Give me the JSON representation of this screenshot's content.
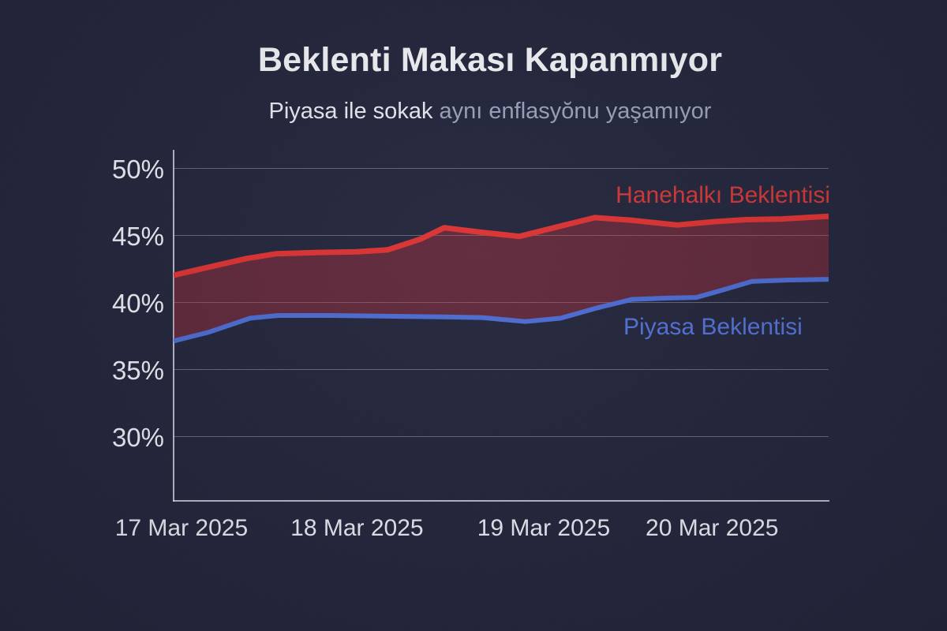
{
  "header": {
    "title": "Beklenti Makası Kapanmıyor",
    "subtitle_strong": "Piyasa ile sokak",
    "subtitle_muted": " aynı enflasyŏnu yaşamıyor"
  },
  "colors": {
    "background": "#20233a",
    "red_line": "#dc3030",
    "blue_line": "#4a6ad2",
    "band_fill": "rgba(205,45,55,0.36)",
    "gridline": "rgba(225,231,248,0.33)",
    "axis": "rgba(230,235,248,0.75)",
    "title_text": "#f3f4f8",
    "subtitle_muted_text": "#9ba1bd",
    "tick_text": "#edeff6"
  },
  "chart_data": {
    "type": "area",
    "title": "Beklenti Makası Kapanmıyor",
    "subtitle": "Piyasa ile sokak aynı enflasyŏnu yaşamıyor",
    "ylabel": "",
    "xlabel": "",
    "grid": true,
    "legend_position": "inline-labels",
    "ylim": [
      25.18,
      51.06
    ],
    "y_ticks": [
      {
        "value": 50,
        "label": "50%"
      },
      {
        "value": 45,
        "label": "45%"
      },
      {
        "value": 40,
        "label": "40%"
      },
      {
        "value": 35,
        "label": "35%"
      },
      {
        "value": 30,
        "label": "30%"
      }
    ],
    "x_ticks": [
      {
        "label": "17 Mar 2025",
        "pos": 0.012
      },
      {
        "label": "18 Mar 2025",
        "pos": 0.28
      },
      {
        "label": "19 Mar 2025",
        "pos": 0.565
      },
      {
        "label": "20 Mar 2025",
        "pos": 0.822
      }
    ],
    "fill_between": true,
    "fill_color": "rgba(205,45,55,0.36)",
    "series": [
      {
        "name": "Hanehalkı Beklentisi",
        "color": "#dc3030",
        "stroke_width": 7,
        "points": [
          [
            0.0,
            42.0
          ],
          [
            0.053,
            42.6
          ],
          [
            0.111,
            43.25
          ],
          [
            0.156,
            43.6
          ],
          [
            0.219,
            43.7
          ],
          [
            0.279,
            43.75
          ],
          [
            0.327,
            43.9
          ],
          [
            0.377,
            44.7
          ],
          [
            0.413,
            45.55
          ],
          [
            0.471,
            45.2
          ],
          [
            0.528,
            44.9
          ],
          [
            0.585,
            45.6
          ],
          [
            0.643,
            46.3
          ],
          [
            0.7,
            46.1
          ],
          [
            0.769,
            45.75
          ],
          [
            0.826,
            46.0
          ],
          [
            0.874,
            46.15
          ],
          [
            0.928,
            46.2
          ],
          [
            0.964,
            46.3
          ],
          [
            1.0,
            46.4
          ]
        ]
      },
      {
        "name": "Piyasa Beklentisi",
        "color": "#4a6ad2",
        "stroke_width": 6,
        "points": [
          [
            0.0,
            37.1
          ],
          [
            0.053,
            37.75
          ],
          [
            0.117,
            38.8
          ],
          [
            0.159,
            39.0
          ],
          [
            0.243,
            39.0
          ],
          [
            0.327,
            38.95
          ],
          [
            0.411,
            38.9
          ],
          [
            0.471,
            38.85
          ],
          [
            0.537,
            38.55
          ],
          [
            0.591,
            38.8
          ],
          [
            0.645,
            39.55
          ],
          [
            0.7,
            40.2
          ],
          [
            0.754,
            40.3
          ],
          [
            0.798,
            40.35
          ],
          [
            0.838,
            40.9
          ],
          [
            0.883,
            41.55
          ],
          [
            0.94,
            41.65
          ],
          [
            1.0,
            41.7
          ]
        ]
      }
    ]
  }
}
